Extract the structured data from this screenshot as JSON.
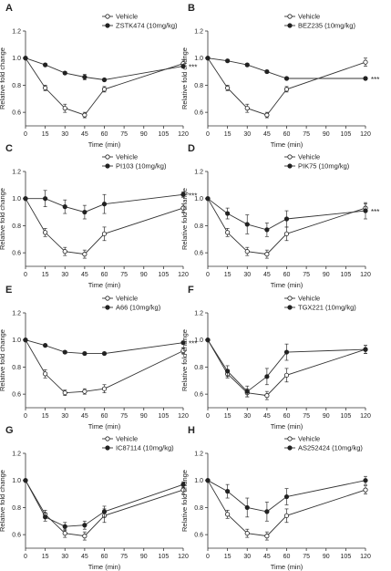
{
  "chart_data": [
    {
      "panel": "A",
      "type": "line",
      "x": [
        0,
        15,
        30,
        45,
        60,
        120
      ],
      "xticks": [
        0,
        15,
        30,
        45,
        60,
        75,
        90,
        105,
        120
      ],
      "yticks": [
        "0.6",
        "0.8",
        "1.0",
        "1.2"
      ],
      "xlim": [
        0,
        120
      ],
      "ylim": [
        0.5,
        1.2
      ],
      "xlabel": "Time (min)",
      "ylabel": "Relative fold change",
      "legend_position": "top-right",
      "significance": "***",
      "series": [
        {
          "name": "Vehicle",
          "marker": "open-circle",
          "values": [
            1.0,
            0.78,
            0.63,
            0.58,
            0.77,
            0.96
          ],
          "err": [
            0,
            0.02,
            0.03,
            0.02,
            0.02,
            0.03
          ]
        },
        {
          "name": "ZSTK474 (10mg/kg)",
          "marker": "filled-circle",
          "values": [
            1.0,
            0.95,
            0.89,
            0.86,
            0.84,
            0.94
          ],
          "err": [
            0,
            0.01,
            0.01,
            0.02,
            0.01,
            0.01
          ]
        }
      ]
    },
    {
      "panel": "B",
      "type": "line",
      "x": [
        0,
        15,
        30,
        45,
        60,
        120
      ],
      "xticks": [
        0,
        15,
        30,
        45,
        60,
        75,
        90,
        105,
        120
      ],
      "yticks": [
        "0.6",
        "0.8",
        "1.0",
        "1.2"
      ],
      "xlim": [
        0,
        120
      ],
      "ylim": [
        0.5,
        1.2
      ],
      "xlabel": "Time (min)",
      "ylabel": "Relative fold change",
      "legend_position": "top-right",
      "significance": "***",
      "series": [
        {
          "name": "Vehicle",
          "marker": "open-circle",
          "values": [
            1.0,
            0.78,
            0.63,
            0.58,
            0.77,
            0.97
          ],
          "err": [
            0,
            0.02,
            0.03,
            0.02,
            0.02,
            0.03
          ]
        },
        {
          "name": "BEZ235 (10mg/kg)",
          "marker": "filled-circle",
          "values": [
            1.0,
            0.98,
            0.95,
            0.9,
            0.85,
            0.85
          ],
          "err": [
            0,
            0.01,
            0.01,
            0.01,
            0.01,
            0.01
          ]
        }
      ]
    },
    {
      "panel": "C",
      "type": "line",
      "x": [
        0,
        15,
        30,
        45,
        60,
        120
      ],
      "xticks": [
        0,
        15,
        30,
        45,
        60,
        75,
        90,
        105,
        120
      ],
      "yticks": [
        "0.6",
        "0.8",
        "1.0",
        "1.2"
      ],
      "xlim": [
        0,
        120
      ],
      "ylim": [
        0.5,
        1.2
      ],
      "xlabel": "Time (min)",
      "ylabel": "Relative fold change",
      "legend_position": "top-right",
      "significance": "***",
      "series": [
        {
          "name": "Vehicle",
          "marker": "open-circle",
          "values": [
            1.0,
            0.75,
            0.61,
            0.59,
            0.74,
            0.93
          ],
          "err": [
            0,
            0.03,
            0.03,
            0.03,
            0.05,
            0.03
          ]
        },
        {
          "name": "PI103 (10mg/kg)",
          "marker": "filled-circle",
          "values": [
            1.0,
            1.0,
            0.94,
            0.9,
            0.96,
            1.03
          ],
          "err": [
            0,
            0.06,
            0.05,
            0.05,
            0.07,
            0.02
          ]
        }
      ]
    },
    {
      "panel": "D",
      "type": "line",
      "x": [
        0,
        15,
        30,
        45,
        60,
        120
      ],
      "xticks": [
        0,
        15,
        30,
        45,
        60,
        75,
        90,
        105,
        120
      ],
      "yticks": [
        "0.6",
        "0.8",
        "1.0",
        "1.2"
      ],
      "xlim": [
        0,
        120
      ],
      "ylim": [
        0.5,
        1.2
      ],
      "xlabel": "Time (min)",
      "ylabel": "Relative fold change",
      "legend_position": "top-right",
      "significance": "***",
      "series": [
        {
          "name": "Vehicle",
          "marker": "open-circle",
          "values": [
            1.0,
            0.75,
            0.61,
            0.59,
            0.74,
            0.93
          ],
          "err": [
            0,
            0.03,
            0.03,
            0.03,
            0.05,
            0.03
          ]
        },
        {
          "name": "PIK75 (10mg/kg)",
          "marker": "filled-circle",
          "values": [
            1.0,
            0.89,
            0.81,
            0.77,
            0.85,
            0.91
          ],
          "err": [
            0,
            0.04,
            0.07,
            0.05,
            0.06,
            0.06
          ]
        }
      ]
    },
    {
      "panel": "E",
      "type": "line",
      "x": [
        0,
        15,
        30,
        45,
        60,
        120
      ],
      "xticks": [
        0,
        15,
        30,
        45,
        60,
        75,
        90,
        105,
        120
      ],
      "yticks": [
        "0.6",
        "0.8",
        "1.0",
        "1.2"
      ],
      "xlim": [
        0,
        120
      ],
      "ylim": [
        0.5,
        1.2
      ],
      "xlabel": "Time (min)",
      "ylabel": "Relative fold change",
      "legend_position": "top-right",
      "significance": "***",
      "series": [
        {
          "name": "Vehicle",
          "marker": "open-circle",
          "values": [
            1.0,
            0.75,
            0.61,
            0.62,
            0.64,
            0.92
          ],
          "err": [
            0,
            0.03,
            0.02,
            0.02,
            0.03,
            0.02
          ]
        },
        {
          "name": "A66 (10mg/kg)",
          "marker": "filled-circle",
          "values": [
            1.0,
            0.96,
            0.91,
            0.9,
            0.9,
            0.98
          ],
          "err": [
            0,
            0.01,
            0.01,
            0.01,
            0.01,
            0.01
          ]
        }
      ]
    },
    {
      "panel": "F",
      "type": "line",
      "x": [
        0,
        15,
        30,
        45,
        60,
        120
      ],
      "xticks": [
        0,
        15,
        30,
        45,
        60,
        75,
        90,
        105,
        120
      ],
      "yticks": [
        "0.6",
        "0.8",
        "1.0",
        "1.2"
      ],
      "xlim": [
        0,
        120
      ],
      "ylim": [
        0.5,
        1.2
      ],
      "xlabel": "Time (min)",
      "ylabel": "Relative fold change",
      "legend_position": "top-right",
      "significance": "",
      "series": [
        {
          "name": "Vehicle",
          "marker": "open-circle",
          "values": [
            1.0,
            0.75,
            0.61,
            0.59,
            0.74,
            0.93
          ],
          "err": [
            0,
            0.03,
            0.03,
            0.03,
            0.05,
            0.03
          ]
        },
        {
          "name": "TGX221 (10mg/kg)",
          "marker": "filled-circle",
          "values": [
            1.0,
            0.77,
            0.62,
            0.73,
            0.91,
            0.93
          ],
          "err": [
            0,
            0.04,
            0.04,
            0.06,
            0.06,
            0.03
          ]
        }
      ]
    },
    {
      "panel": "G",
      "type": "line",
      "x": [
        0,
        15,
        30,
        45,
        60,
        120
      ],
      "xticks": [
        0,
        15,
        30,
        45,
        60,
        75,
        90,
        105,
        120
      ],
      "yticks": [
        "0.6",
        "0.8",
        "1.0",
        "1.2"
      ],
      "xlim": [
        0,
        120
      ],
      "ylim": [
        0.5,
        1.2
      ],
      "xlabel": "Time (min)",
      "ylabel": "Relative fold change",
      "legend_position": "top-right",
      "significance": "",
      "series": [
        {
          "name": "Vehicle",
          "marker": "open-circle",
          "values": [
            1.0,
            0.75,
            0.61,
            0.59,
            0.74,
            0.93
          ],
          "err": [
            0,
            0.03,
            0.03,
            0.03,
            0.05,
            0.03
          ]
        },
        {
          "name": "IC87114 (10mg/kg)",
          "marker": "filled-circle",
          "values": [
            1.0,
            0.73,
            0.66,
            0.67,
            0.77,
            0.97
          ],
          "err": [
            0,
            0.03,
            0.03,
            0.03,
            0.04,
            0.02
          ]
        }
      ]
    },
    {
      "panel": "H",
      "type": "line",
      "x": [
        0,
        15,
        30,
        45,
        60,
        120
      ],
      "xticks": [
        0,
        15,
        30,
        45,
        60,
        75,
        90,
        105,
        120
      ],
      "yticks": [
        "0.6",
        "0.8",
        "1.0",
        "1.2"
      ],
      "xlim": [
        0,
        120
      ],
      "ylim": [
        0.5,
        1.2
      ],
      "xlabel": "Time (min)",
      "ylabel": "Relative fold change",
      "legend_position": "top-right",
      "significance": "",
      "series": [
        {
          "name": "Vehicle",
          "marker": "open-circle",
          "values": [
            1.0,
            0.75,
            0.61,
            0.59,
            0.74,
            0.93
          ],
          "err": [
            0,
            0.03,
            0.03,
            0.03,
            0.05,
            0.03
          ]
        },
        {
          "name": "AS252424 (10mg/kg)",
          "marker": "filled-circle",
          "values": [
            1.0,
            0.92,
            0.8,
            0.77,
            0.88,
            1.0
          ],
          "err": [
            0,
            0.05,
            0.07,
            0.07,
            0.06,
            0.03
          ]
        }
      ]
    }
  ]
}
